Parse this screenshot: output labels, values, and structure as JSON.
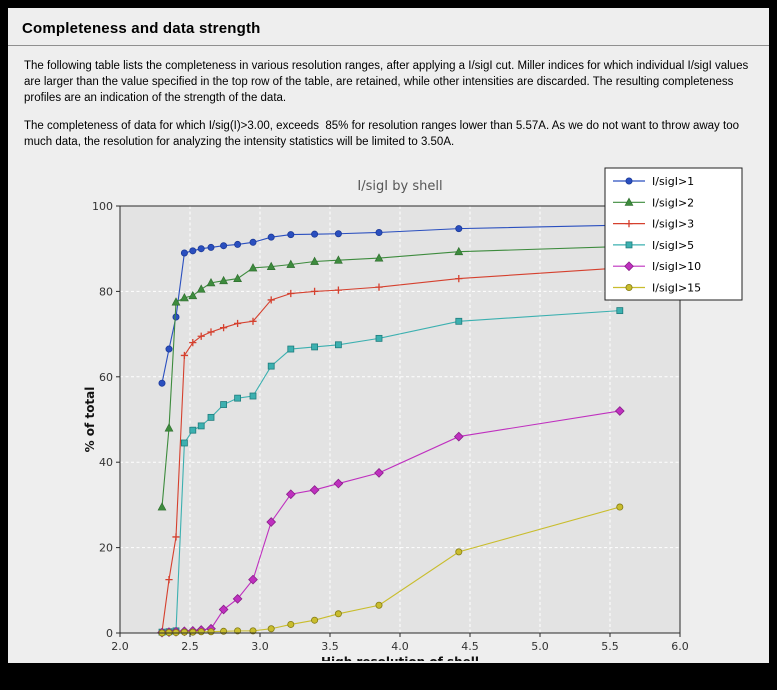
{
  "page": {
    "title": "Completeness and data strength",
    "paragraph1": "The following table lists the completeness in various resolution ranges, after applying a I/sigI cut. Miller indices for which individual I/sigI values are larger than the value specified in the top row of the table, are retained, while other intensities are discarded. The resulting completeness profiles are an indication of the strength of the data.",
    "paragraph2": "The completeness of data for which I/sig(I)>3.00, exceeds  85% for resolution ranges lower than 5.57A. As we do not want to throw away too much data, the resolution for analyzing the intensity statistics will be limited to 3.50A."
  },
  "colors": {
    "page_background": "#eeeeee",
    "frame": "#000000",
    "plot_background": "#e3e3e3",
    "grid": "#ffffff",
    "axes_border": "#2a2a2a",
    "chart_title": "#555555"
  },
  "chart_data": {
    "type": "line",
    "title": "I/sigI by shell",
    "xlabel": "High resolution of shell",
    "ylabel": "% of total",
    "xlim": [
      2.0,
      6.0
    ],
    "ylim": [
      0,
      100
    ],
    "x_ticks": [
      2.0,
      2.5,
      3.0,
      3.5,
      4.0,
      4.5,
      5.0,
      5.5,
      6.0
    ],
    "y_ticks": [
      0,
      20,
      40,
      60,
      80,
      100
    ],
    "grid": true,
    "legend_position": "top-right",
    "x": [
      2.3,
      2.35,
      2.4,
      2.46,
      2.52,
      2.58,
      2.65,
      2.74,
      2.84,
      2.95,
      3.08,
      3.22,
      3.39,
      3.56,
      3.85,
      4.42,
      5.57
    ],
    "series": [
      {
        "name": "I/sigI>1",
        "color": "#2a4fbf",
        "edge": "#1c3a99",
        "marker": "circle",
        "values": [
          58.5,
          66.5,
          74.0,
          89.0,
          89.5,
          90.0,
          90.3,
          90.7,
          91.0,
          91.5,
          92.7,
          93.3,
          93.4,
          93.5,
          93.8,
          94.7,
          95.5
        ]
      },
      {
        "name": "I/sigI>2",
        "color": "#3d8b3d",
        "edge": "#2d6b2d",
        "marker": "triangle",
        "values": [
          29.5,
          48.0,
          77.5,
          78.5,
          79.0,
          80.5,
          82.0,
          82.5,
          83.0,
          85.5,
          85.8,
          86.3,
          87.0,
          87.3,
          87.8,
          89.3,
          90.5
        ]
      },
      {
        "name": "I/sigI>3",
        "color": "#d5402e",
        "edge": "#a52f20",
        "marker": "plus",
        "values": [
          0.3,
          12.5,
          22.5,
          65.0,
          68.0,
          69.5,
          70.5,
          71.5,
          72.5,
          73.0,
          78.0,
          79.5,
          80.0,
          80.3,
          81.0,
          83.0,
          85.5
        ]
      },
      {
        "name": "I/sigI>5",
        "color": "#3cb0b0",
        "edge": "#1f7d7d",
        "marker": "square",
        "values": [
          0.2,
          0.3,
          0.5,
          44.5,
          47.5,
          48.5,
          50.5,
          53.5,
          55.0,
          55.5,
          62.5,
          66.5,
          67.0,
          67.5,
          69.0,
          73.0,
          75.5
        ]
      },
      {
        "name": "I/sigI>10",
        "color": "#bf30bf",
        "edge": "#8a1f8a",
        "marker": "diamond",
        "values": [
          0.1,
          0.2,
          0.3,
          0.4,
          0.5,
          0.7,
          1.0,
          5.5,
          8.0,
          12.5,
          26.0,
          32.5,
          33.5,
          35.0,
          37.5,
          46.0,
          52.0
        ]
      },
      {
        "name": "I/sigI>15",
        "color": "#c9bd2d",
        "edge": "#857c14",
        "marker": "circle",
        "values": [
          0.0,
          0.1,
          0.1,
          0.2,
          0.2,
          0.3,
          0.3,
          0.4,
          0.5,
          0.5,
          1.0,
          2.0,
          3.0,
          4.5,
          6.5,
          19.0,
          29.5
        ]
      }
    ]
  }
}
